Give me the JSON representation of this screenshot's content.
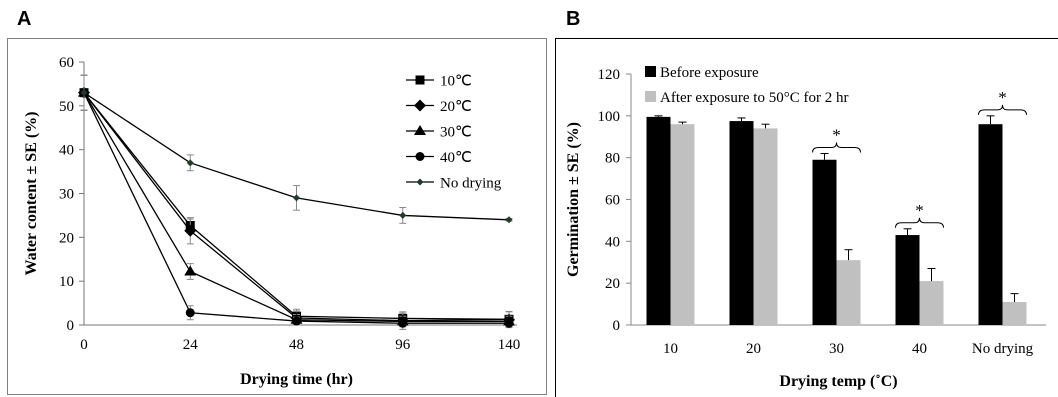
{
  "panel_labels": {
    "a": "A",
    "b": "B"
  },
  "chart_data": [
    {
      "type": "line",
      "panel": "A",
      "xlabel": "Drying time (hr)",
      "ylabel": "Water content ± SE (%)",
      "categories": [
        "0",
        "24",
        "48",
        "96",
        "140"
      ],
      "ylim": [
        0,
        60
      ],
      "yticks": [
        0,
        10,
        20,
        30,
        40,
        50,
        60
      ],
      "grid": false,
      "legend_position": "top-right",
      "series": [
        {
          "name": "10℃",
          "marker": "square",
          "values": [
            53,
            22.7,
            2,
            1.5,
            1.3
          ],
          "errors": [
            4,
            1.5,
            1.6,
            1.2,
            1.8
          ]
        },
        {
          "name": "20℃",
          "marker": "diamond",
          "values": [
            53,
            21.5,
            1.6,
            1,
            1.2
          ],
          "errors": [
            4,
            3,
            1.6,
            2,
            1.8
          ]
        },
        {
          "name": "30℃",
          "marker": "triangle",
          "values": [
            53,
            12.2,
            1.2,
            0.8,
            0.8
          ],
          "errors": [
            4,
            1.8,
            1.2,
            1.2,
            1.2
          ]
        },
        {
          "name": "40℃",
          "marker": "circle",
          "values": [
            53,
            2.8,
            0.9,
            0.4,
            0.4
          ],
          "errors": [
            4,
            1.6,
            0.9,
            0.6,
            0.6
          ]
        },
        {
          "name": "No drying",
          "marker": "small-diamond",
          "values": [
            53,
            37,
            29,
            25,
            24
          ],
          "errors": [
            4,
            1.8,
            2.8,
            1.8,
            0.3
          ]
        }
      ]
    },
    {
      "type": "bar",
      "panel": "B",
      "xlabel": "Drying temp (˚C)",
      "ylabel": "Germination ± SE (%)",
      "categories": [
        "10",
        "20",
        "30",
        "40",
        "No drying"
      ],
      "ylim": [
        0,
        120
      ],
      "yticks": [
        0,
        20,
        40,
        60,
        80,
        100,
        120
      ],
      "grid": false,
      "legend_position": "top-left",
      "series": [
        {
          "name": "Before exposure",
          "color": "#000000",
          "values": [
            99.5,
            97.5,
            79,
            43,
            96
          ],
          "errors": [
            0.5,
            1.5,
            3,
            3,
            4
          ]
        },
        {
          "name": "After exposure to 50°C for 2 hr",
          "color": "#c0c0c0",
          "values": [
            96,
            94,
            31,
            21,
            11
          ],
          "errors": [
            1,
            2,
            5,
            6,
            4
          ]
        }
      ],
      "significance": [
        {
          "category": "30",
          "label": "*"
        },
        {
          "category": "40",
          "label": "*"
        },
        {
          "category": "No drying",
          "label": "*"
        }
      ]
    }
  ]
}
